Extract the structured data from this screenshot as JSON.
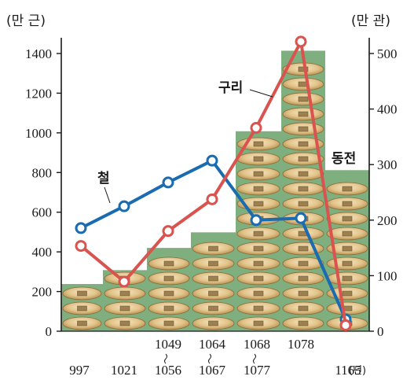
{
  "chart_data": {
    "type": "bar-line",
    "left_axis_unit": "(만 근)",
    "right_axis_unit": "(만 관)",
    "left_ticks": [
      "0",
      "200",
      "400",
      "600",
      "800",
      "1000",
      "1200",
      "1400"
    ],
    "right_ticks": [
      "0",
      "100",
      "200",
      "300",
      "400",
      "500"
    ],
    "ylim_left": [
      0,
      1400
    ],
    "ylim_right": [
      0,
      500
    ],
    "x_label_unit": "(년)",
    "x_ticks_bottom": [
      "997",
      "1021",
      "1056",
      "1067",
      "1077",
      "1165"
    ],
    "x_ticks_top": [
      "1049",
      "1064",
      "1068",
      "1078"
    ],
    "bars": {
      "name": "동전",
      "axis": "right",
      "categories": [
        "997",
        "1021",
        "1049~1056",
        "1064~1067",
        "1068~1077",
        "1078",
        "1165"
      ],
      "values": [
        85,
        110,
        150,
        178,
        360,
        505,
        290
      ],
      "color": "#7fae7f"
    },
    "series": [
      {
        "name": "철",
        "axis": "left",
        "color": "#1a6bb0",
        "values": [
          520,
          630,
          750,
          860,
          560,
          570,
          60
        ]
      },
      {
        "name": "구리",
        "axis": "left",
        "color": "#d9534f",
        "values": [
          430,
          250,
          505,
          665,
          1025,
          1460,
          30
        ]
      }
    ]
  }
}
